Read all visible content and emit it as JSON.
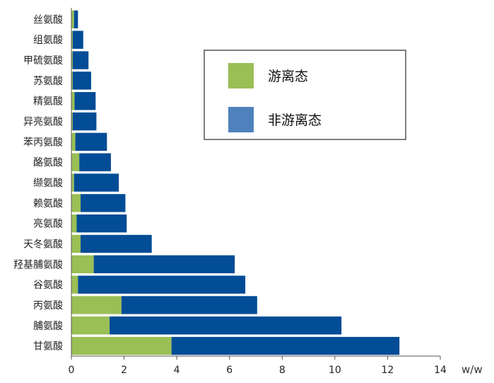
{
  "chart_data": {
    "type": "bar",
    "orientation": "horizontal",
    "stacked": true,
    "categories": [
      "丝氨酸",
      "组氨酸",
      "甲硫氨酸",
      "苏氨酸",
      "精氨酸",
      "异亮氨酸",
      "苯丙氨酸",
      "酪氨酸",
      "缬氨酸",
      "赖氨酸",
      "亮氨酸",
      "天冬氨酸",
      "羟基脯氨酸",
      "谷氨酸",
      "丙氨酸",
      "脯氨酸",
      "甘氨酸"
    ],
    "series": [
      {
        "name": "游离态",
        "color": "#99bf55",
        "values": [
          0.1,
          0.05,
          0.05,
          0.05,
          0.12,
          0.05,
          0.15,
          0.3,
          0.1,
          0.35,
          0.2,
          0.35,
          0.85,
          0.25,
          1.9,
          1.45,
          3.8
        ]
      },
      {
        "name": "非游离态",
        "color": "#034c96",
        "values": [
          0.15,
          0.4,
          0.6,
          0.7,
          0.8,
          0.9,
          1.2,
          1.2,
          1.7,
          1.7,
          1.9,
          2.7,
          5.35,
          6.35,
          5.15,
          8.8,
          8.65
        ]
      }
    ],
    "xlim": [
      0,
      14
    ],
    "xticks": [
      0,
      2,
      4,
      6,
      8,
      10,
      12,
      14
    ],
    "xlabel": "",
    "unit": "w/w",
    "title": "",
    "legend": {
      "position": "top-right",
      "entries": [
        {
          "label": "游离态",
          "color": "#99bf55"
        },
        {
          "label": "非游离态",
          "color": "#4f81bd"
        }
      ]
    },
    "grid": false
  }
}
